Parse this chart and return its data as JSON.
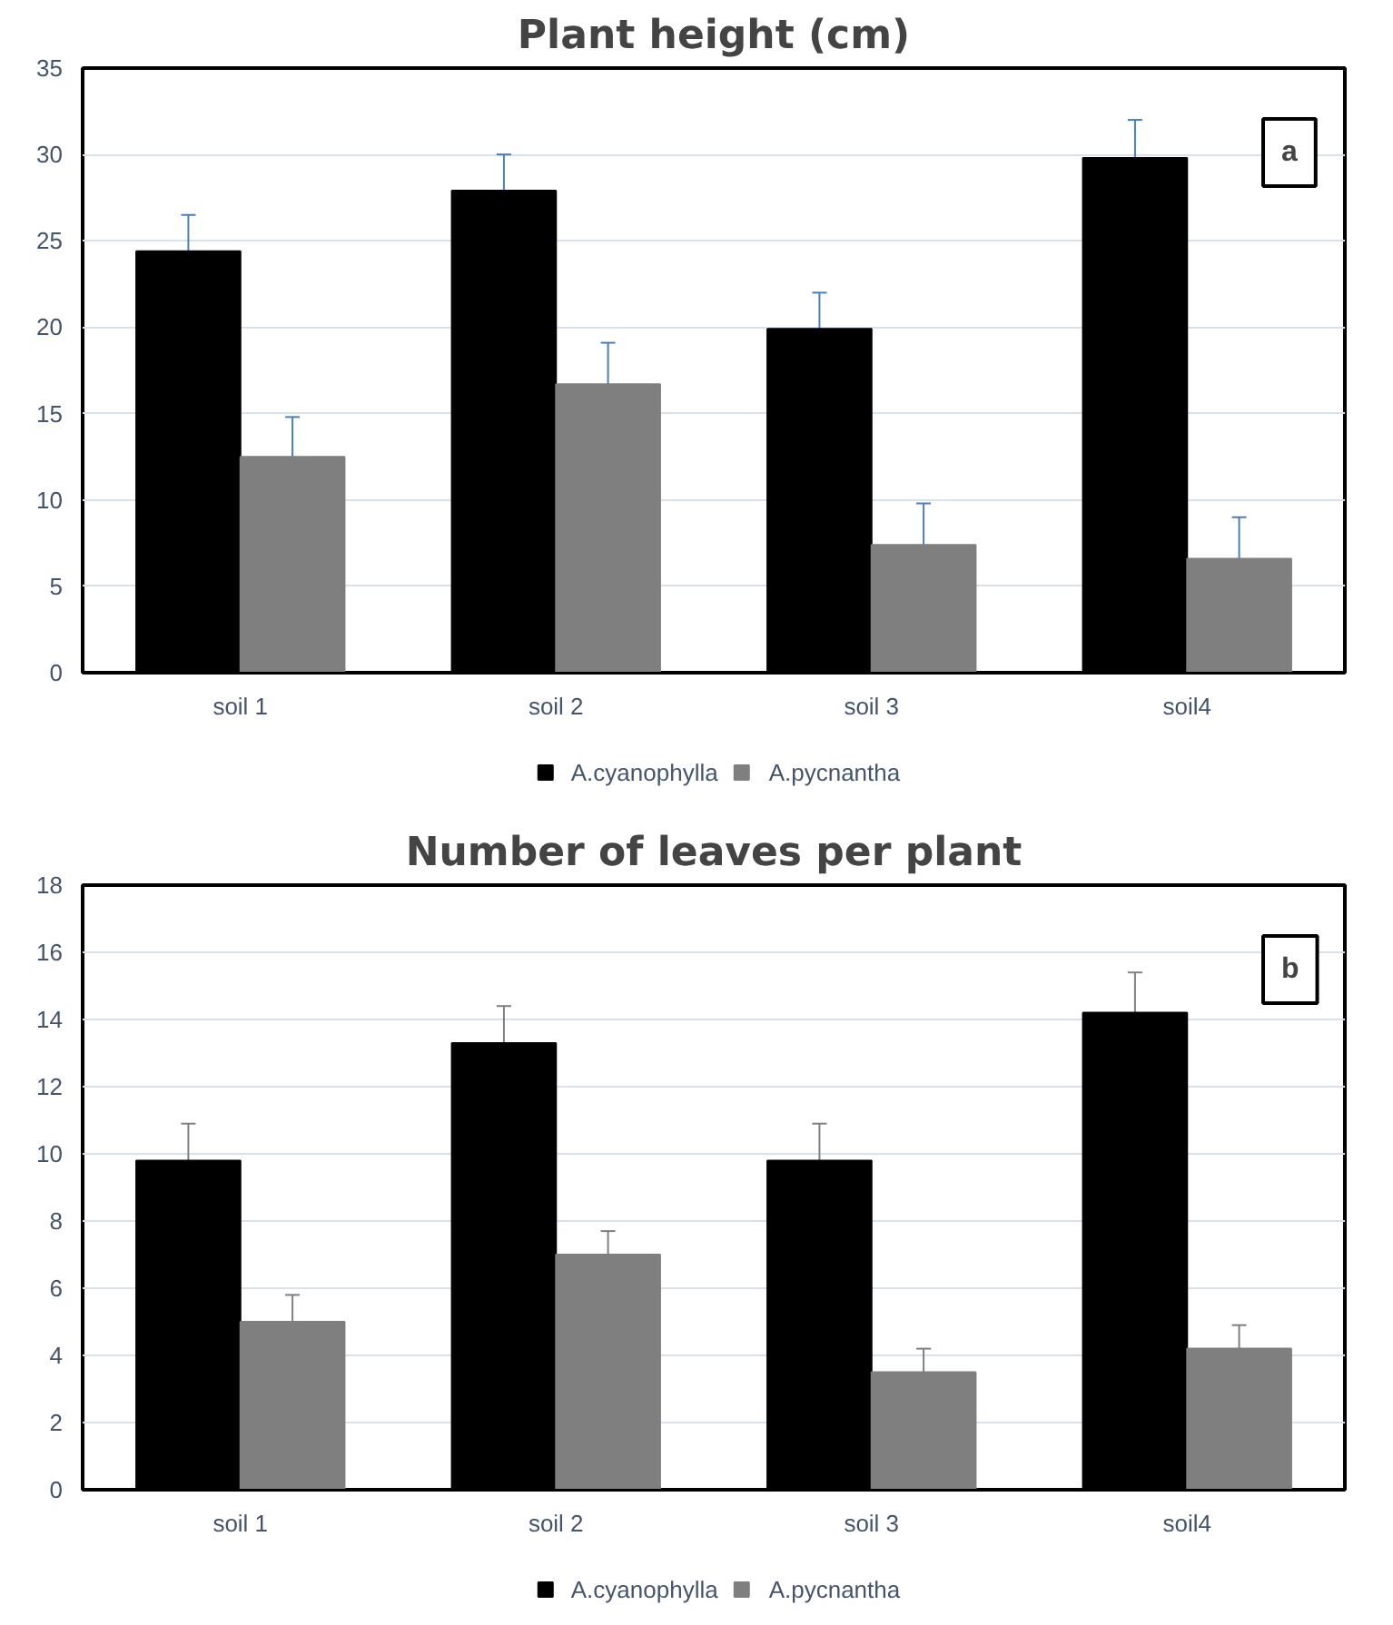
{
  "chart_data": [
    {
      "type": "bar",
      "title": "Plant height (cm)",
      "categories": [
        "soil 1",
        "soil 2",
        "soil 3",
        "soil4"
      ],
      "ylim": [
        0,
        35
      ],
      "yticks": [
        0,
        5,
        10,
        15,
        20,
        25,
        30,
        35
      ],
      "grid": "y",
      "legend": "bottom",
      "annotations": [
        "a"
      ],
      "series": [
        {
          "name": "A.cyanophylla",
          "color": "#000000",
          "values": [
            24.4,
            27.9,
            19.9,
            29.8
          ],
          "errors": [
            2.1,
            2.1,
            2.1,
            2.2
          ]
        },
        {
          "name": "A.pycnantha",
          "color": "#7f7f7f",
          "values": [
            12.5,
            16.7,
            7.4,
            6.6
          ],
          "errors": [
            2.3,
            2.4,
            2.4,
            2.4
          ]
        }
      ]
    },
    {
      "type": "bar",
      "title": "Number of leaves per plant",
      "categories": [
        "soil 1",
        "soil 2",
        "soil 3",
        "soil4"
      ],
      "ylim": [
        0,
        18
      ],
      "yticks": [
        0,
        2,
        4,
        6,
        8,
        10,
        12,
        14,
        16,
        18
      ],
      "grid": "y",
      "legend": "bottom",
      "annotations": [
        "b"
      ],
      "series": [
        {
          "name": "A.cyanophylla",
          "color": "#000000",
          "values": [
            9.8,
            13.3,
            9.8,
            14.2
          ],
          "errors": [
            1.1,
            1.1,
            1.1,
            1.2
          ]
        },
        {
          "name": "A.pycnantha",
          "color": "#7f7f7f",
          "values": [
            5.0,
            7.0,
            3.5,
            4.2
          ],
          "errors": [
            0.8,
            0.7,
            0.7,
            0.7
          ]
        }
      ]
    }
  ]
}
